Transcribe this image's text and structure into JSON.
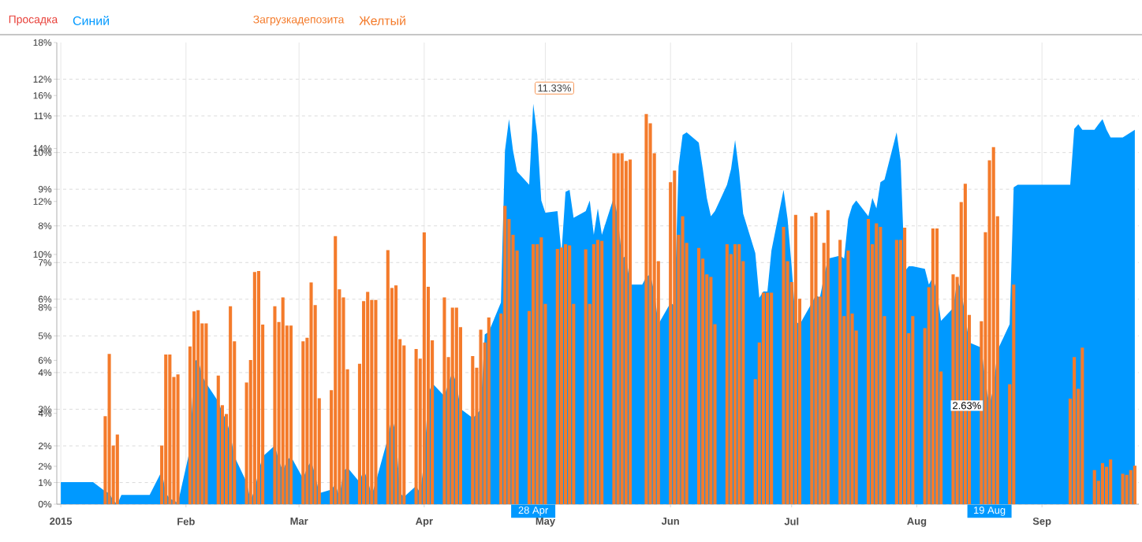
{
  "chart_data": {
    "type": "bar",
    "annotations": [
      "Просадка",
      "Загрузкадепозита",
      {
        "text": "11.33%",
        "x": "2015-04-28",
        "y": 11.33
      },
      {
        "text": "2.63%",
        "x": "2015-08-19",
        "y": 3.1
      },
      {
        "text": "28 Apr",
        "x": "2015-04-28"
      },
      {
        "text": "19 Aug",
        "x": "2015-08-19"
      }
    ],
    "x": [
      "2015-01-01",
      "2015-01-02",
      "2015-01-05",
      "2015-01-06",
      "2015-01-07",
      "2015-01-08",
      "2015-01-09",
      "2015-01-12",
      "2015-01-13",
      "2015-01-14",
      "2015-01-15",
      "2015-01-16",
      "2015-01-19",
      "2015-01-20",
      "2015-01-21",
      "2015-01-22",
      "2015-01-23",
      "2015-01-26",
      "2015-01-27",
      "2015-01-28",
      "2015-01-29",
      "2015-01-30",
      "2015-02-02",
      "2015-02-03",
      "2015-02-04",
      "2015-02-05",
      "2015-02-06",
      "2015-02-09",
      "2015-02-10",
      "2015-02-11",
      "2015-02-12",
      "2015-02-13",
      "2015-02-16",
      "2015-02-17",
      "2015-02-18",
      "2015-02-19",
      "2015-02-20",
      "2015-02-23",
      "2015-02-24",
      "2015-02-25",
      "2015-02-26",
      "2015-02-27",
      "2015-03-02",
      "2015-03-03",
      "2015-03-04",
      "2015-03-05",
      "2015-03-06",
      "2015-03-09",
      "2015-03-10",
      "2015-03-11",
      "2015-03-12",
      "2015-03-13",
      "2015-03-16",
      "2015-03-17",
      "2015-03-18",
      "2015-03-19",
      "2015-03-20",
      "2015-03-23",
      "2015-03-24",
      "2015-03-25",
      "2015-03-26",
      "2015-03-27",
      "2015-03-30",
      "2015-03-31",
      "2015-04-01",
      "2015-04-02",
      "2015-04-03",
      "2015-04-06",
      "2015-04-07",
      "2015-04-08",
      "2015-04-09",
      "2015-04-10",
      "2015-04-13",
      "2015-04-14",
      "2015-04-15",
      "2015-04-16",
      "2015-04-17",
      "2015-04-20",
      "2015-04-21",
      "2015-04-22",
      "2015-04-23",
      "2015-04-24",
      "2015-04-27",
      "2015-04-28",
      "2015-04-29",
      "2015-04-30",
      "2015-05-01",
      "2015-05-04",
      "2015-05-05",
      "2015-05-06",
      "2015-05-07",
      "2015-05-08",
      "2015-05-11",
      "2015-05-12",
      "2015-05-13",
      "2015-05-14",
      "2015-05-15",
      "2015-05-18",
      "2015-05-19",
      "2015-05-20",
      "2015-05-21",
      "2015-05-22",
      "2015-05-25",
      "2015-05-26",
      "2015-05-27",
      "2015-05-28",
      "2015-05-29",
      "2015-06-01",
      "2015-06-02",
      "2015-06-03",
      "2015-06-04",
      "2015-06-05",
      "2015-06-08",
      "2015-06-09",
      "2015-06-10",
      "2015-06-11",
      "2015-06-12",
      "2015-06-15",
      "2015-06-16",
      "2015-06-17",
      "2015-06-18",
      "2015-06-19",
      "2015-06-22",
      "2015-06-23",
      "2015-06-24",
      "2015-06-25",
      "2015-06-26",
      "2015-06-29",
      "2015-06-30",
      "2015-07-01",
      "2015-07-02",
      "2015-07-03",
      "2015-07-06",
      "2015-07-07",
      "2015-07-08",
      "2015-07-09",
      "2015-07-10",
      "2015-07-13",
      "2015-07-14",
      "2015-07-15",
      "2015-07-16",
      "2015-07-17",
      "2015-07-20",
      "2015-07-21",
      "2015-07-22",
      "2015-07-23",
      "2015-07-24",
      "2015-07-27",
      "2015-07-28",
      "2015-07-29",
      "2015-07-30",
      "2015-07-31",
      "2015-08-03",
      "2015-08-04",
      "2015-08-05",
      "2015-08-06",
      "2015-08-07",
      "2015-08-10",
      "2015-08-11",
      "2015-08-12",
      "2015-08-13",
      "2015-08-14",
      "2015-08-17",
      "2015-08-18",
      "2015-08-19",
      "2015-08-20",
      "2015-08-21",
      "2015-08-24",
      "2015-08-25",
      "2015-08-26",
      "2015-08-27",
      "2015-08-28",
      "2015-08-31",
      "2015-09-01",
      "2015-09-02",
      "2015-09-03",
      "2015-09-04",
      "2015-09-07",
      "2015-09-08",
      "2015-09-09",
      "2015-09-10",
      "2015-09-11",
      "2015-09-14",
      "2015-09-15",
      "2015-09-16",
      "2015-09-17",
      "2015-09-18",
      "2015-09-21",
      "2015-09-22",
      "2015-09-23",
      "2015-09-24"
    ],
    "series": [
      {
        "name": "Синий",
        "type": "area",
        "color": "#0099ff",
        "values": [
          1.01,
          1.01,
          1.01,
          1.01,
          1.01,
          1.01,
          1.01,
          0.76,
          0.71,
          0.51,
          0.41,
          0.66,
          0.66,
          0.66,
          0.66,
          0.66,
          0.66,
          1.31,
          0.71,
          0.56,
          0.51,
          0.44,
          1.91,
          4.31,
          4.36,
          3.91,
          3.71,
          3.21,
          2.91,
          2.71,
          2.31,
          1.71,
          1.01,
          0.51,
          0.81,
          1.31,
          1.71,
          2.01,
          1.61,
          1.31,
          1.61,
          1.71,
          1.11,
          1.41,
          1.58,
          1.21,
          0.71,
          0.81,
          0.96,
          0.61,
          1.31,
          1.41,
          1.01,
          1.36,
          1.06,
          0.66,
          1.01,
          2.21,
          2.81,
          2.31,
          0.71,
          0.61,
          0.91,
          0.71,
          1.61,
          3.41,
          3.71,
          3.36,
          3.71,
          4.01,
          3.71,
          3.01,
          2.76,
          2.86,
          3.01,
          5.04,
          5.11,
          5.91,
          10.05,
          10.91,
          10.05,
          9.48,
          9.12,
          11.33,
          10.48,
          8.69,
          8.36,
          8.4,
          7.26,
          8.93,
          8.98,
          8.22,
          8.4,
          8.69,
          7.76,
          8.48,
          7.76,
          8.79,
          8.19,
          7.11,
          7.19,
          6.4,
          6.4,
          6.61,
          6.68,
          6.18,
          5.32,
          5.9,
          5.83,
          9.62,
          10.48,
          10.55,
          10.27,
          9.55,
          8.76,
          8.26,
          8.4,
          9.12,
          9.55,
          10.34,
          9.48,
          8.33,
          7.26,
          6.04,
          6.21,
          6.21,
          7.33,
          8.98,
          8.19,
          6.9,
          5.4,
          5.31,
          5.9,
          6.11,
          6.04,
          6.61,
          7.11,
          7.19,
          7.11,
          8.19,
          8.55,
          8.69,
          8.26,
          8.76,
          8.48,
          9.19,
          9.26,
          10.55,
          9.77,
          6.76,
          6.9,
          6.9,
          6.83,
          6.4,
          6.61,
          6.18,
          5.41,
          5.76,
          6.51,
          6.26,
          5.54,
          4.82,
          4.68,
          3.75,
          3.1,
          3.6,
          4.61,
          5.32,
          9.05,
          9.12,
          9.12,
          9.12,
          9.12,
          9.12,
          9.12,
          9.12,
          9.12,
          9.12,
          9.12,
          10.65,
          10.77,
          10.62,
          10.62,
          10.77,
          10.91,
          10.62,
          10.41,
          10.41,
          10.48,
          10.55,
          10.62
        ]
      },
      {
        "name": "Желтый",
        "color": "#f47b2b",
        "values": [
          null,
          null,
          null,
          null,
          null,
          null,
          null,
          2.81,
          4.51,
          2.01,
          2.31,
          null,
          null,
          null,
          null,
          null,
          null,
          2.01,
          4.49,
          4.49,
          3.88,
          3.95,
          4.71,
          5.67,
          5.7,
          5.34,
          5.34,
          3.92,
          3.11,
          2.87,
          5.81,
          4.85,
          3.73,
          4.34,
          6.74,
          6.77,
          5.31,
          5.81,
          5.38,
          6.05,
          5.28,
          5.28,
          4.85,
          4.95,
          6.46,
          5.84,
          3.3,
          3.52,
          7.72,
          6.27,
          6.05,
          4.09,
          4.24,
          5.95,
          6.2,
          5.98,
          5.98,
          7.34,
          6.31,
          6.38,
          4.91,
          4.74,
          4.64,
          4.38,
          7.82,
          6.34,
          4.88,
          6.05,
          4.42,
          5.77,
          5.77,
          5.24,
          4.45,
          4.13,
          5.17,
          4.82,
          5.5,
          5.61,
          8.55,
          8.19,
          7.76,
          7.33,
          5.68,
          7.5,
          7.5,
          7.69,
          5.87,
          7.37,
          7.41,
          7.5,
          7.47,
          5.87,
          7.36,
          5.87,
          7.5,
          7.62,
          7.59,
          9.98,
          9.98,
          9.98,
          9.77,
          9.81,
          null,
          11.05,
          10.8,
          9.98,
          7.04,
          9.19,
          9.51,
          7.76,
          8.26,
          7.54,
          7.4,
          7.11,
          6.68,
          6.61,
          5.32,
          7.5,
          7.23,
          7.5,
          7.5,
          7.04,
          3.82,
          4.82,
          6.18,
          6.18,
          6.18,
          7.97,
          7.04,
          6.47,
          8.3,
          6.01,
          8.26,
          8.36,
          6.07,
          7.54,
          8.43,
          7.62,
          5.54,
          7.33,
          5.61,
          5.15,
          8.19,
          7.5,
          8.07,
          7.97,
          5.54,
          7.62,
          7.62,
          7.95,
          5.07,
          5.54,
          5.21,
          6.33,
          7.93,
          7.93,
          4.03,
          6.68,
          6.61,
          8.65,
          9.15,
          5.57,
          5.4,
          7.83,
          9.79,
          10.15,
          8.26,
          3.68,
          6.4,
          null,
          null,
          null,
          null,
          null,
          null,
          null,
          null,
          null,
          3.29,
          4.42,
          3.56,
          4.68,
          1.34,
          1.05,
          1.53,
          1.43,
          1.63,
          1.24,
          1.21,
          1.34,
          1.46
        ]
      }
    ],
    "xlim": [
      "2014-12-31",
      "2015-09-25"
    ],
    "xticks": [
      {
        "value": "2015-01-01",
        "label": "2015"
      },
      {
        "value": "2015-02-01",
        "label": "Feb"
      },
      {
        "value": "2015-03-01",
        "label": "Mar"
      },
      {
        "value": "2015-04-01",
        "label": "Apr"
      },
      {
        "value": "2015-05-01",
        "label": "May"
      },
      {
        "value": "2015-06-01",
        "label": "Jun"
      },
      {
        "value": "2015-07-01",
        "label": "Jul"
      },
      {
        "value": "2015-08-01",
        "label": "Aug"
      },
      {
        "value": "2015-09-01",
        "label": "Sep"
      }
    ],
    "ylim": [
      0.41,
      13.0
    ],
    "yticks": [
      {
        "value": 0.41,
        "label": "0%"
      },
      {
        "value": 1,
        "label": "1%"
      },
      {
        "value": 2,
        "label": "2%"
      },
      {
        "value": 3,
        "label": "3%"
      },
      {
        "value": 4,
        "label": "4%"
      },
      {
        "value": 5,
        "label": "5%"
      },
      {
        "value": 6,
        "label": "6%"
      },
      {
        "value": 7,
        "label": "7%"
      },
      {
        "value": 8,
        "label": "8%"
      },
      {
        "value": 9,
        "label": "9%"
      },
      {
        "value": 10,
        "label": "10%"
      },
      {
        "value": 11,
        "label": "11%"
      },
      {
        "value": 12,
        "label": "12%"
      }
    ],
    "y2lim": [
      0.57,
      18
    ],
    "y2ticks": [
      {
        "value": 2,
        "label": "2%"
      },
      {
        "value": 4,
        "label": "4%"
      },
      {
        "value": 6,
        "label": "6%"
      },
      {
        "value": 8,
        "label": "8%"
      },
      {
        "value": 10,
        "label": "10%"
      },
      {
        "value": 12,
        "label": "12%"
      },
      {
        "value": 14,
        "label": "14%"
      },
      {
        "value": 16,
        "label": "16%"
      },
      {
        "value": 18,
        "label": "18%"
      }
    ],
    "grid": true,
    "legend": "top"
  }
}
